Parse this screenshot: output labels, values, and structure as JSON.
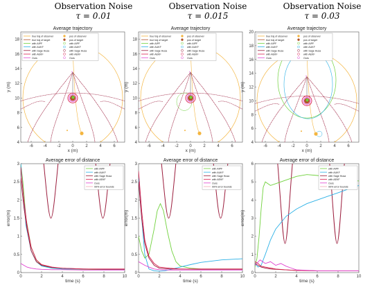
{
  "figure": {
    "columns": [
      {
        "title_main": "Observation Noise",
        "title_tau": "τ = 0.01"
      },
      {
        "title_main": "Observation Noise",
        "title_tau": "τ = 0.015"
      },
      {
        "title_main": "Observation Noise",
        "title_tau": "τ = 0.03"
      }
    ]
  },
  "colors": {
    "observer": "#f4b53f",
    "target": "#b0522a",
    "aipf": "#6fd13b",
    "aukf": "#2ab0e6",
    "sage_husa": "#9b1c3c",
    "aekf": "#d91f4f",
    "ours": "#e040d0"
  },
  "chart_data": [
    {
      "type": "line",
      "title": "Average trajectory",
      "xlabel": "x (m)",
      "ylabel": "y (m)",
      "xlim": [
        -7.5,
        7.5
      ],
      "ylim": [
        4,
        19
      ],
      "xticks": [
        "-6",
        "-4",
        "-2",
        "0",
        "2",
        "4",
        "6"
      ],
      "yticks": [
        "4",
        "6",
        "8",
        "10",
        "12",
        "14",
        "16",
        "18"
      ],
      "legend": [
        "true traj of observer",
        "true traj of target",
        "with AIPF",
        "with AUKF",
        "with Sage Husa",
        "with AEKF",
        "Ours",
        "pos of observer",
        "pos of target",
        "with AIPF",
        "with AUKF",
        "with Sage Husa",
        "with AEKF",
        "Ours"
      ],
      "observer_start": [
        1.3,
        5.2
      ],
      "target_position": [
        0,
        10
      ],
      "observer_orbit_radius": 7.2
    },
    {
      "type": "line",
      "title": "Average trajectory",
      "xlabel": "x (m)",
      "ylabel": "y (m)",
      "xlim": [
        -7.5,
        7.5
      ],
      "ylim": [
        4,
        19
      ],
      "xticks": [
        "-6",
        "-4",
        "-2",
        "0",
        "2",
        "4",
        "6"
      ],
      "yticks": [
        "4",
        "6",
        "8",
        "10",
        "12",
        "14",
        "16",
        "18"
      ],
      "legend": [
        "true traj of observer",
        "true traj of target",
        "with AIPF",
        "with AUKF",
        "with Sage Husa",
        "with AEKF",
        "Ours",
        "pos of observer",
        "pos of target",
        "with AIPF",
        "with AUKF",
        "with Sage Husa",
        "with AEKF",
        "Ours"
      ],
      "observer_start": [
        1.3,
        5.2
      ],
      "target_position": [
        0,
        10
      ],
      "observer_orbit_radius": 7.2
    },
    {
      "type": "line",
      "title": "Average trajectory",
      "xlabel": "x (m)",
      "ylabel": "y (m)",
      "xlim": [
        -7.5,
        7.5
      ],
      "ylim": [
        4,
        20
      ],
      "xticks": [
        "-6",
        "-4",
        "-2",
        "0",
        "2",
        "4",
        "6"
      ],
      "yticks": [
        "4",
        "6",
        "8",
        "10",
        "12",
        "14",
        "16",
        "18",
        "20"
      ],
      "legend": [
        "true traj of observer",
        "true traj of target",
        "with AIPF",
        "with AUKF",
        "with Sage Husa",
        "with AEKF",
        "Ours",
        "pos of observer",
        "pos of target",
        "with AIPF",
        "with AUKF",
        "with Sage Husa",
        "with AEKF",
        "Ours"
      ],
      "observer_start": [
        1.3,
        5.2
      ],
      "target_position": [
        0,
        10
      ],
      "observer_orbit_radius": 7.2
    },
    {
      "type": "line",
      "title": "Average error of distance",
      "xlabel": "time (s)",
      "ylabel": "error(m)",
      "xlim": [
        0,
        10
      ],
      "ylim": [
        0,
        3
      ],
      "xticks": [
        "0",
        "2",
        "4",
        "6",
        "8",
        "10"
      ],
      "yticks": [
        "0",
        "0.5",
        "1",
        "1.5",
        "2",
        "2.5",
        "3"
      ],
      "legend": [
        "with AIPF",
        "with AUKF",
        "with Sage Husa",
        "with AEKF",
        "Ours",
        "99% error bounds"
      ],
      "series": [
        {
          "name": "with AIPF",
          "x": [
            0,
            0.2,
            0.5,
            1,
            1.5,
            2,
            3,
            4,
            6,
            8,
            10
          ],
          "y": [
            3,
            2.5,
            1.5,
            0.7,
            0.35,
            0.2,
            0.12,
            0.1,
            0.09,
            0.08,
            0.08
          ]
        },
        {
          "name": "with AUKF",
          "x": [
            0,
            0.2,
            0.5,
            1,
            1.5,
            2,
            3,
            4,
            6,
            8,
            10
          ],
          "y": [
            3,
            2.3,
            1.3,
            0.6,
            0.3,
            0.18,
            0.12,
            0.1,
            0.1,
            0.09,
            0.09
          ]
        },
        {
          "name": "with Sage Husa",
          "x": [
            0,
            0.3,
            0.6,
            1,
            1.5,
            2,
            3,
            4,
            6,
            8,
            10
          ],
          "y": [
            2.6,
            1.8,
            1.2,
            0.6,
            0.3,
            0.2,
            0.14,
            0.12,
            0.1,
            0.09,
            0.09
          ]
        },
        {
          "name": "with AEKF",
          "x": [
            0,
            0.3,
            0.6,
            1,
            1.5,
            2,
            3,
            4,
            6,
            8,
            10
          ],
          "y": [
            2.9,
            2,
            1.3,
            0.7,
            0.35,
            0.22,
            0.15,
            0.12,
            0.1,
            0.1,
            0.1
          ]
        },
        {
          "name": "Ours",
          "x": [
            0,
            0.3,
            0.6,
            1,
            1.5,
            2,
            3,
            4,
            6,
            8,
            10
          ],
          "y": [
            0.25,
            0.2,
            0.15,
            0.12,
            0.1,
            0.09,
            0.08,
            0.08,
            0.07,
            0.07,
            0.07
          ]
        }
      ],
      "error_bound_markers": {
        "x": [
          2.9,
          7.9
        ],
        "min_y": 1.5
      }
    },
    {
      "type": "line",
      "title": "Average error of distance",
      "xlabel": "time (s)",
      "ylabel": "error(m)",
      "xlim": [
        0,
        10
      ],
      "ylim": [
        0,
        3
      ],
      "xticks": [
        "0",
        "2",
        "4",
        "6",
        "8",
        "10"
      ],
      "yticks": [
        "0",
        "0.5",
        "1",
        "1.5",
        "2",
        "2.5",
        "3"
      ],
      "legend": [
        "with AIPF",
        "with AUKF",
        "with Sage Husa",
        "with AEKF",
        "Ours",
        "99% error bounds"
      ],
      "series": [
        {
          "name": "with AIPF",
          "x": [
            0,
            0.3,
            0.6,
            1,
            1.5,
            1.8,
            2.1,
            2.4,
            2.8,
            3.2,
            3.6,
            4,
            5,
            6,
            8,
            10
          ],
          "y": [
            1,
            0.6,
            0.4,
            0.5,
            1.2,
            1.7,
            1.9,
            1.7,
            1.1,
            0.6,
            0.3,
            0.18,
            0.12,
            0.1,
            0.1,
            0.1
          ]
        },
        {
          "name": "with AUKF",
          "x": [
            0,
            0.3,
            0.6,
            1,
            1.5,
            2,
            2.5,
            3,
            4,
            5,
            6,
            8,
            10
          ],
          "y": [
            2.6,
            1.5,
            0.5,
            0.1,
            0.05,
            0.04,
            0.05,
            0.08,
            0.15,
            0.22,
            0.28,
            0.35,
            0.38
          ]
        },
        {
          "name": "with Sage Husa",
          "x": [
            0,
            0.3,
            0.6,
            1,
            1.5,
            2,
            3,
            4,
            6,
            8,
            10
          ],
          "y": [
            2.5,
            1.5,
            0.8,
            0.4,
            0.2,
            0.12,
            0.1,
            0.1,
            0.09,
            0.09,
            0.09
          ]
        },
        {
          "name": "with AEKF",
          "x": [
            0,
            0.3,
            0.6,
            1,
            1.5,
            2,
            3,
            4,
            6,
            8,
            10
          ],
          "y": [
            2.8,
            1.7,
            0.9,
            0.45,
            0.25,
            0.15,
            0.12,
            0.1,
            0.1,
            0.1,
            0.1
          ]
        },
        {
          "name": "Ours",
          "x": [
            0,
            0.3,
            0.6,
            1,
            1.5,
            2,
            3,
            4,
            6,
            8,
            10
          ],
          "y": [
            0.3,
            0.25,
            0.2,
            0.15,
            0.1,
            0.08,
            0.07,
            0.07,
            0.07,
            0.07,
            0.07
          ]
        }
      ],
      "error_bound_markers": {
        "x": [
          2.9,
          7.9
        ],
        "min_y": 1.5
      }
    },
    {
      "type": "line",
      "title": "Average error of distance",
      "xlabel": "time (s)",
      "ylabel": "error(m)",
      "xlim": [
        0,
        10
      ],
      "ylim": [
        0,
        6
      ],
      "xticks": [
        "0",
        "2",
        "4",
        "6",
        "8",
        "10"
      ],
      "yticks": [
        "0",
        "1",
        "2",
        "3",
        "4",
        "5",
        "6"
      ],
      "legend": [
        "with AIPF",
        "with AUKF",
        "with Sage Husa",
        "with AEKF",
        "Ours",
        "99% error bounds"
      ],
      "series": [
        {
          "name": "with AIPF",
          "x": [
            0,
            0.2,
            0.4,
            0.6,
            0.8,
            1,
            1.5,
            2,
            3,
            4,
            5,
            6,
            7,
            8,
            10
          ],
          "y": [
            0.3,
            0.8,
            2,
            3.5,
            4.7,
            5,
            4.8,
            4.9,
            5.1,
            5.3,
            5.4,
            5.35,
            5.25,
            5.15,
            5.05
          ]
        },
        {
          "name": "with AUKF",
          "x": [
            0,
            0.3,
            0.6,
            1,
            1.5,
            2,
            3,
            4,
            5,
            6,
            7,
            8,
            9,
            10
          ],
          "y": [
            0.5,
            0.3,
            0.4,
            1,
            1.8,
            2.4,
            3.1,
            3.5,
            3.8,
            4,
            4.2,
            4.4,
            4.6,
            4.8
          ]
        },
        {
          "name": "with Sage Husa",
          "x": [
            0,
            0.3,
            0.6,
            1,
            1.5,
            2,
            3,
            4,
            6,
            8,
            10
          ],
          "y": [
            0.5,
            0.4,
            0.3,
            0.25,
            0.2,
            0.18,
            0.15,
            0.12,
            0.1,
            0.1,
            0.1
          ]
        },
        {
          "name": "with AEKF",
          "x": [
            0,
            0.3,
            0.6,
            1,
            1.5,
            2,
            3,
            4,
            6,
            8,
            10
          ],
          "y": [
            0.6,
            0.5,
            0.35,
            0.3,
            0.25,
            0.2,
            0.15,
            0.12,
            0.1,
            0.1,
            0.1
          ]
        },
        {
          "name": "Ours",
          "x": [
            0,
            0.5,
            1,
            1.5,
            2,
            2.5,
            3,
            3.5,
            4,
            6,
            8,
            10
          ],
          "y": [
            0.4,
            0.7,
            0.5,
            0.6,
            0.4,
            0.5,
            0.35,
            0.25,
            0.15,
            0.1,
            0.1,
            0.1
          ]
        }
      ],
      "error_bound_markers": {
        "x": [
          2.9,
          7.9
        ],
        "min_y": 1.6
      }
    }
  ]
}
